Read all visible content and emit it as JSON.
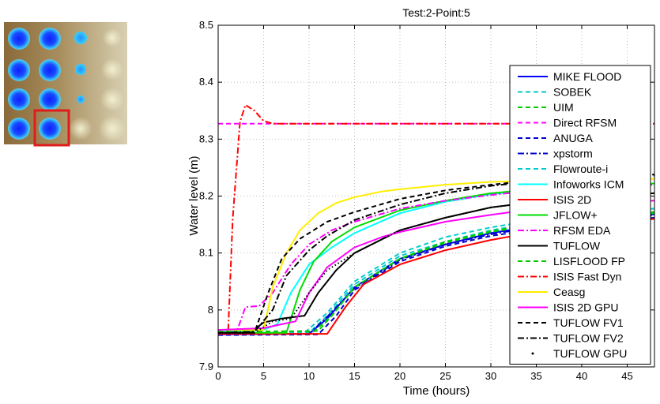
{
  "inset_map": {
    "background": "#d9cfb4",
    "highlight_color": "#e01c1c"
  },
  "chart_data": {
    "type": "line",
    "title": "Test:2-Point:5",
    "xlabel": "Time (hours)",
    "ylabel": "Water level (m)",
    "xlim": [
      0,
      48
    ],
    "ylim": [
      7.9,
      8.5
    ],
    "xticks": [
      0,
      5,
      10,
      15,
      20,
      25,
      30,
      35,
      40,
      45
    ],
    "yticks": [
      7.9,
      8.0,
      8.1,
      8.2,
      8.3,
      8.4,
      8.5
    ],
    "xtick_labels": [
      "0",
      "5",
      "10",
      "15",
      "20",
      "25",
      "30",
      "35",
      "40",
      "45"
    ],
    "ytick_labels": [
      "7.9",
      "8",
      "8.1",
      "8.2",
      "8.3",
      "8.4",
      "8.5"
    ],
    "grid": true,
    "legend_position": "right",
    "series": [
      {
        "name": "MIKE FLOOD",
        "color": "#0000ff",
        "dash": "solid",
        "x": [
          0,
          10,
          12,
          15,
          20,
          25,
          30,
          35,
          40,
          48
        ],
        "y": [
          7.957,
          7.958,
          7.985,
          8.04,
          8.09,
          8.115,
          8.135,
          8.148,
          8.158,
          8.168
        ]
      },
      {
        "name": "SOBEK",
        "color": "#00cccc",
        "dash": "dashed",
        "x": [
          0,
          10,
          12,
          15,
          20,
          25,
          30,
          35,
          40,
          48
        ],
        "y": [
          7.96,
          7.96,
          7.99,
          8.045,
          8.095,
          8.12,
          8.14,
          8.153,
          8.162,
          8.172
        ]
      },
      {
        "name": "UIM",
        "color": "#00cc00",
        "dash": "dashed",
        "x": [
          0,
          10.5,
          12.5,
          15,
          20,
          25,
          30,
          35,
          40,
          48
        ],
        "y": [
          7.96,
          7.962,
          7.99,
          8.04,
          8.09,
          8.12,
          8.138,
          8.152,
          8.162,
          8.172
        ]
      },
      {
        "name": "Direct RFSM",
        "color": "#ff00ff",
        "dash": "dashed",
        "x": [
          0,
          48
        ],
        "y": [
          8.327,
          8.327
        ]
      },
      {
        "name": "ANUGA",
        "color": "#0000cc",
        "dash": "dashed",
        "x": [
          0,
          11,
          13,
          15,
          20,
          25,
          30,
          35,
          40,
          48
        ],
        "y": [
          7.956,
          7.957,
          7.99,
          8.035,
          8.085,
          8.112,
          8.13,
          8.142,
          8.152,
          8.162
        ]
      },
      {
        "name": "xpstorm",
        "color": "#0000cc",
        "dash": "dashdot",
        "x": [
          0,
          10,
          12,
          15,
          20,
          25,
          30,
          35,
          40,
          48
        ],
        "y": [
          7.958,
          7.958,
          7.988,
          8.038,
          8.088,
          8.115,
          8.133,
          8.146,
          8.156,
          8.166
        ]
      },
      {
        "name": "Flowroute-i",
        "color": "#00cccc",
        "dash": "dashed",
        "x": [
          0,
          9.5,
          12,
          15,
          20,
          25,
          30,
          35,
          40,
          48
        ],
        "y": [
          7.96,
          7.96,
          7.995,
          8.05,
          8.1,
          8.128,
          8.145,
          8.158,
          8.168,
          8.178
        ]
      },
      {
        "name": "Infoworks ICM",
        "color": "#00ffff",
        "dash": "solid",
        "x": [
          0,
          5,
          6.5,
          8,
          10,
          12.5,
          15,
          20,
          25,
          30,
          35,
          40,
          48
        ],
        "y": [
          7.962,
          7.965,
          7.975,
          8.03,
          8.08,
          8.11,
          8.135,
          8.17,
          8.19,
          8.203,
          8.212,
          8.218,
          8.222
        ]
      },
      {
        "name": "ISIS 2D",
        "color": "#ff0000",
        "dash": "solid",
        "x": [
          0,
          12,
          14,
          16,
          20,
          25,
          30,
          35,
          40,
          48
        ],
        "y": [
          7.958,
          7.958,
          8.005,
          8.045,
          8.08,
          8.105,
          8.123,
          8.137,
          8.148,
          8.16
        ]
      },
      {
        "name": "JFLOW+",
        "color": "#00dd00",
        "dash": "solid",
        "x": [
          0,
          7.5,
          9,
          10.5,
          12.5,
          15,
          20,
          25,
          30,
          35,
          40,
          48
        ],
        "y": [
          7.96,
          7.96,
          8.035,
          8.085,
          8.12,
          8.145,
          8.175,
          8.192,
          8.205,
          8.212,
          8.218,
          8.222
        ]
      },
      {
        "name": "RFSM EDA",
        "color": "#ff00ff",
        "dash": "dashdot",
        "x": [
          0,
          2,
          3,
          4.5,
          6,
          8,
          10,
          12.5,
          15,
          20,
          25,
          30,
          35,
          40,
          48
        ],
        "y": [
          7.96,
          7.96,
          8.005,
          8.007,
          8.03,
          8.08,
          8.115,
          8.14,
          8.155,
          8.178,
          8.192,
          8.202,
          8.21,
          8.215,
          8.22
        ]
      },
      {
        "name": "TUFLOW",
        "color": "#000000",
        "dash": "solid",
        "x": [
          0,
          3.5,
          5,
          7,
          9.5,
          11,
          13,
          15,
          20,
          25,
          30,
          35,
          40,
          48
        ],
        "y": [
          7.96,
          7.96,
          7.978,
          7.985,
          7.99,
          8.03,
          8.07,
          8.1,
          8.14,
          8.162,
          8.18,
          8.19,
          8.198,
          8.205
        ]
      },
      {
        "name": "LISFLOOD FP",
        "color": "#00cc00",
        "dash": "dashed",
        "x": [
          0,
          11,
          12.5,
          15,
          20,
          25,
          30,
          35,
          40,
          48
        ],
        "y": [
          7.962,
          7.963,
          7.99,
          8.04,
          8.09,
          8.118,
          8.137,
          8.15,
          8.16,
          8.17
        ]
      },
      {
        "name": "ISIS Fast Dyn",
        "color": "#ff0000",
        "dash": "dashdot",
        "x": [
          0,
          1.1,
          1.6,
          2.4,
          3,
          4,
          5,
          6,
          48
        ],
        "y": [
          7.96,
          7.96,
          8.16,
          8.33,
          8.36,
          8.35,
          8.332,
          8.327,
          8.327
        ]
      },
      {
        "name": "Ceasg",
        "color": "#ffee00",
        "dash": "solid",
        "x": [
          0,
          5,
          6,
          7.5,
          9,
          11,
          13,
          15,
          18,
          20,
          25,
          30,
          35,
          40,
          48
        ],
        "y": [
          7.965,
          7.965,
          8.04,
          8.1,
          8.14,
          8.17,
          8.188,
          8.198,
          8.208,
          8.212,
          8.22,
          8.225,
          8.227,
          8.228,
          8.23
        ]
      },
      {
        "name": "ISIS 2D GPU",
        "color": "#ff00ff",
        "dash": "solid",
        "x": [
          0,
          5,
          7,
          8.5,
          10,
          12,
          15,
          18,
          20,
          25,
          30,
          35,
          40,
          48
        ],
        "y": [
          7.965,
          7.968,
          7.975,
          7.98,
          8.03,
          8.075,
          8.11,
          8.128,
          8.137,
          8.155,
          8.167,
          8.178,
          8.185,
          8.192
        ]
      },
      {
        "name": "TUFLOW FV1",
        "color": "#000000",
        "dash": "dashed",
        "x": [
          0,
          4,
          5.5,
          7,
          9,
          12,
          15,
          20,
          25,
          30,
          35,
          40,
          48
        ],
        "y": [
          7.96,
          7.96,
          8.03,
          8.09,
          8.125,
          8.155,
          8.172,
          8.195,
          8.21,
          8.22,
          8.228,
          8.232,
          8.236
        ]
      },
      {
        "name": "TUFLOW FV2",
        "color": "#000000",
        "dash": "dashdot",
        "x": [
          0,
          4,
          6,
          7.5,
          10,
          12,
          15,
          20,
          25,
          30,
          35,
          40,
          48
        ],
        "y": [
          7.96,
          7.962,
          8.0,
          8.06,
          8.105,
          8.13,
          8.158,
          8.185,
          8.205,
          8.218,
          8.226,
          8.232,
          8.238
        ]
      },
      {
        "name": "TUFLOW GPU",
        "color": "#000000",
        "dash": "dotted",
        "x": [
          0,
          4,
          6,
          8,
          10,
          12,
          15,
          20,
          25,
          30,
          35,
          40,
          48
        ],
        "y": [
          7.96,
          7.96,
          7.98,
          7.985,
          8.03,
          8.07,
          8.1,
          8.14,
          8.162,
          8.18,
          8.19,
          8.198,
          8.205
        ]
      }
    ]
  }
}
